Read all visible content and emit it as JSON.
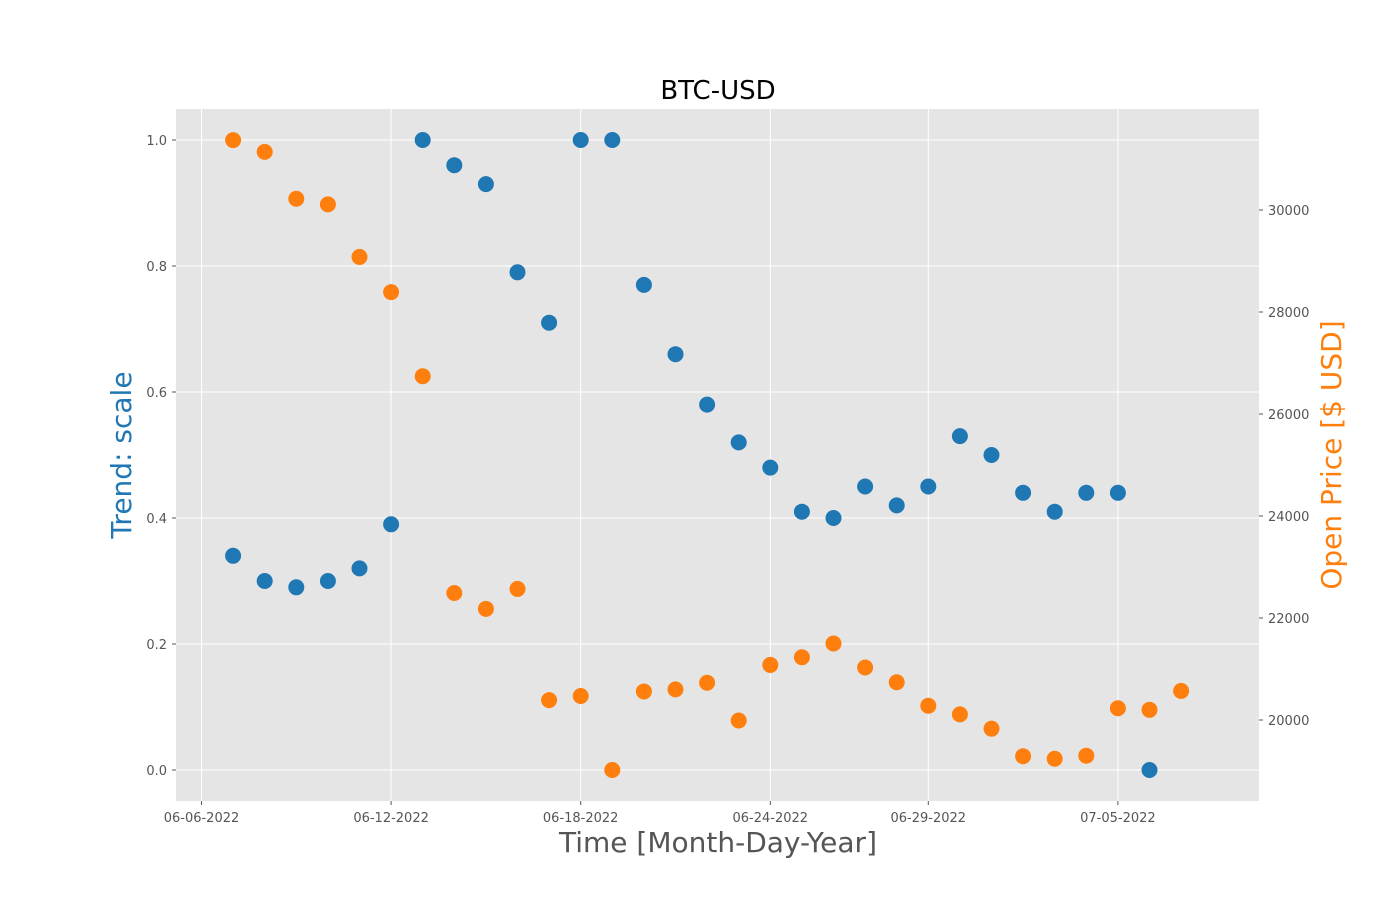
{
  "chart_data": {
    "type": "scatter",
    "title": "BTC-USD",
    "xlabel": "Time [Month-Day-Year]",
    "ylabel_left": "Trend: scale",
    "ylabel_right": "Open Price [$ USD]",
    "x_ticks": [
      "06-06-2022",
      "06-12-2022",
      "06-18-2022",
      "06-24-2022",
      "06-29-2022",
      "07-05-2022"
    ],
    "x_dates": [
      "06-07-2022",
      "06-08-2022",
      "06-09-2022",
      "06-10-2022",
      "06-11-2022",
      "06-12-2022",
      "06-13-2022",
      "06-14-2022",
      "06-15-2022",
      "06-16-2022",
      "06-17-2022",
      "06-18-2022",
      "06-19-2022",
      "06-20-2022",
      "06-21-2022",
      "06-22-2022",
      "06-23-2022",
      "06-24-2022",
      "06-25-2022",
      "06-26-2022",
      "06-27-2022",
      "06-28-2022",
      "06-29-2022",
      "06-30-2022",
      "07-01-2022",
      "07-02-2022",
      "07-03-2022",
      "07-04-2022",
      "07-05-2022",
      "07-06-2022",
      "07-07-2022"
    ],
    "y_left_ticks": [
      "0.0",
      "0.2",
      "0.4",
      "0.6",
      "0.8",
      "1.0"
    ],
    "y_right_ticks": [
      "20000",
      "22000",
      "24000",
      "26000",
      "28000",
      "30000"
    ],
    "ylim_left": [
      -0.05,
      1.05
    ],
    "ylim_right": [
      18800,
      31900
    ],
    "grid": true,
    "colors": {
      "trend": "#1f77b4",
      "price": "#ff7f0e",
      "background": "#e5e5e5",
      "grid": "#ffffff"
    },
    "series": [
      {
        "axis": "left",
        "values": [
          0.34,
          0.3,
          0.29,
          0.3,
          0.32,
          0.39,
          1.0,
          0.96,
          0.93,
          0.79,
          0.71,
          1.0,
          1.0,
          0.77,
          0.66,
          0.58,
          0.52,
          0.48,
          0.41,
          0.4,
          0.45,
          0.42,
          0.45,
          0.53,
          0.5,
          0.44,
          0.41,
          0.44,
          0.44,
          0.0,
          null
        ]
      },
      {
        "axis": "right",
        "values": [
          31370,
          31140,
          30220,
          30110,
          29080,
          28390,
          26740,
          22490,
          22180,
          22570,
          20390,
          20470,
          19020,
          20560,
          20600,
          20730,
          19990,
          21080,
          21230,
          21500,
          21030,
          20740,
          20280,
          20110,
          19830,
          19290,
          19240,
          19300,
          20230,
          20200,
          20570
        ]
      }
    ]
  }
}
